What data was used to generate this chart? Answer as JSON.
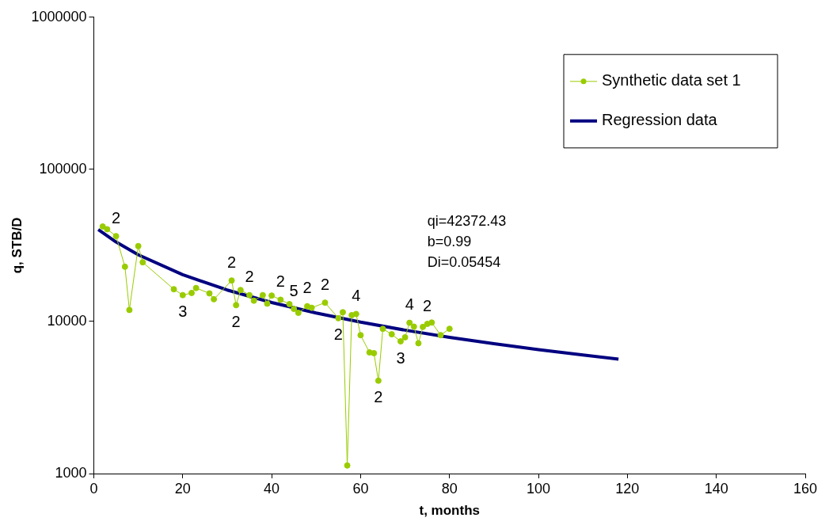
{
  "chart_data": {
    "type": "line",
    "xlabel": "t, months",
    "ylabel": "q, STB/D",
    "log": "y",
    "xlim": [
      0,
      160
    ],
    "xticks": [
      0,
      20,
      40,
      60,
      80,
      100,
      120,
      140,
      160
    ],
    "ylim": [
      1000,
      1000000
    ],
    "yticks": [
      1000,
      10000,
      100000,
      1000000
    ],
    "grid": false,
    "legend": "top right",
    "series": [
      {
        "name": "Synthetic data set 1",
        "marker": "circle",
        "color": "#99cc00",
        "x": [
          2,
          3,
          5,
          7,
          8,
          10,
          11,
          18,
          20,
          22,
          23,
          26,
          27,
          31,
          32,
          33,
          35,
          36,
          38,
          39,
          40,
          42,
          44,
          45,
          46,
          48,
          49,
          52,
          55,
          56,
          57,
          58,
          59,
          60,
          62,
          63,
          64,
          65,
          67,
          69,
          70,
          71,
          72,
          73,
          74,
          75,
          76,
          78,
          80
        ],
        "values": [
          42100,
          40400,
          36400,
          22900,
          11900,
          31300,
          24500,
          16300,
          14900,
          15400,
          16600,
          15300,
          14000,
          18600,
          12800,
          16100,
          14900,
          13700,
          14900,
          13100,
          14800,
          13900,
          13000,
          12100,
          11400,
          12600,
          12300,
          13300,
          10500,
          11500,
          1130,
          11000,
          11200,
          8130,
          6260,
          6190,
          4080,
          8950,
          8240,
          7400,
          7870,
          9800,
          9250,
          7190,
          9210,
          9640,
          9840,
          8130,
          8950
        ]
      },
      {
        "name": "Regression data",
        "marker": "none",
        "color": "#000080",
        "x": [
          1,
          5,
          10,
          20,
          30,
          40,
          50,
          60,
          70,
          80,
          90,
          100,
          110,
          118
        ],
        "values": [
          40180,
          33300,
          27450,
          20300,
          16100,
          13330,
          11370,
          9900,
          8770,
          7870,
          7140,
          6530,
          6020,
          5660
        ]
      }
    ],
    "annotations": [
      {
        "text": "2",
        "x": 5,
        "y": 36400
      },
      {
        "text": "3",
        "x": 20,
        "y": 14900
      },
      {
        "text": "2",
        "x": 31,
        "y": 18600
      },
      {
        "text": "2",
        "x": 32,
        "y": 12800
      },
      {
        "text": "2",
        "x": 35,
        "y": 14900
      },
      {
        "text": "2",
        "x": 42,
        "y": 13900
      },
      {
        "text": "5",
        "x": 45,
        "y": 12100
      },
      {
        "text": "2",
        "x": 48,
        "y": 12600
      },
      {
        "text": "2",
        "x": 52,
        "y": 13300
      },
      {
        "text": "4",
        "x": 59,
        "y": 11200
      },
      {
        "text": "2",
        "x": 55,
        "y": 10500
      },
      {
        "text": "4",
        "x": 71,
        "y": 9800
      },
      {
        "text": "2",
        "x": 75,
        "y": 9640
      },
      {
        "text": "3",
        "x": 69,
        "y": 7400
      },
      {
        "text": "2",
        "x": 64,
        "y": 4080
      },
      "qi=42372.43",
      "b=0.99",
      "Di=0.05454"
    ]
  }
}
